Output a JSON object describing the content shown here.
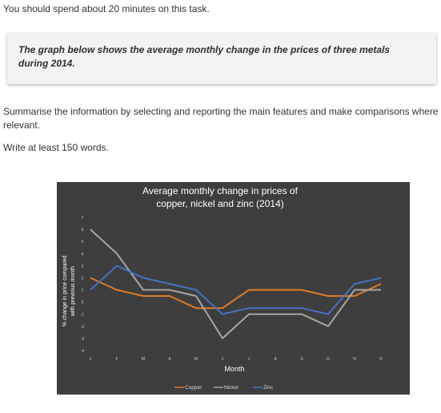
{
  "page": {
    "intro": "You should spend about 20 minutes on this task.",
    "task": "The graph below shows the average monthly change in the prices of three metals during 2014.",
    "instructions": "Summarise the information by selecting and reporting the main features and make comparisons where relevant.",
    "word_count": "Write at least 150 words."
  },
  "chart_data": {
    "type": "line",
    "title_line1": "Average monthly change in prices of",
    "title_line2": "copper, nickel and zinc (2014)",
    "xlabel": "Month",
    "ylabel_line1": "% change in price compared",
    "ylabel_line2": "with previous month",
    "categories": [
      "J",
      "F",
      "M",
      "A",
      "M",
      "J",
      "J",
      "A",
      "S",
      "O",
      "N",
      "D"
    ],
    "y_ticks": [
      "-4",
      "-3",
      "-2",
      "-1",
      "0",
      "1",
      "2",
      "3",
      "4",
      "5",
      "6",
      "7"
    ],
    "ylim": [
      -4,
      7
    ],
    "grid": false,
    "legend_position": "bottom",
    "series": [
      {
        "name": "Copper",
        "color": "#e07b26",
        "values": [
          2,
          1,
          0.5,
          0.5,
          -0.5,
          -0.5,
          1,
          1,
          1,
          0.5,
          0.5,
          1.5
        ]
      },
      {
        "name": "Nickel",
        "color": "#a6a6a6",
        "values": [
          6,
          4,
          1,
          1,
          0.5,
          -3,
          -1,
          -1,
          -1,
          -2,
          1,
          1
        ]
      },
      {
        "name": "Zinc",
        "color": "#4472c4",
        "values": [
          1,
          3,
          2,
          1.5,
          1,
          -1,
          -0.5,
          -0.5,
          -0.5,
          -1,
          1.5,
          2
        ]
      }
    ]
  }
}
